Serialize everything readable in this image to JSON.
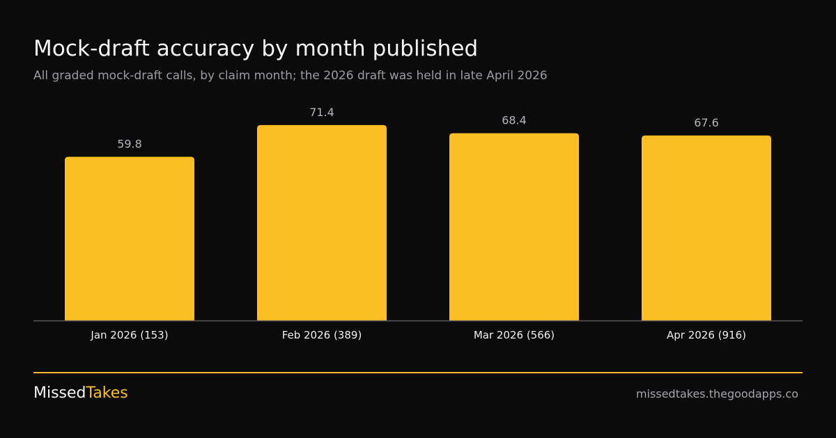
{
  "header": {
    "title": "Mock-draft accuracy by month published",
    "subtitle": "All graded mock-draft calls, by claim month; the 2026 draft was held in late April 2026"
  },
  "chart_data": {
    "type": "bar",
    "title": "Mock-draft accuracy by month published",
    "subtitle": "All graded mock-draft calls, by claim month; the 2026 draft was held in late April 2026",
    "categories": [
      "Jan 2026 (153)",
      "Feb 2026 (389)",
      "Mar 2026 (566)",
      "Apr 2026 (916)"
    ],
    "values": [
      59.8,
      71.4,
      68.4,
      67.6
    ],
    "value_labels": [
      "59.8",
      "71.4",
      "68.4",
      "67.6"
    ],
    "xlabel": "",
    "ylabel": "",
    "ylim": [
      0,
      80
    ],
    "grid": false,
    "legend": "none",
    "bar_color": "#fbbf24"
  },
  "footer": {
    "brand_part1": "Missed",
    "brand_part2": "Takes",
    "website": "missedtakes.thegoodapps.co"
  },
  "colors": {
    "background": "#0b0b0b",
    "accent": "#fbbf24",
    "baseline": "#56565c",
    "muted_text": "#9a9ca4"
  }
}
